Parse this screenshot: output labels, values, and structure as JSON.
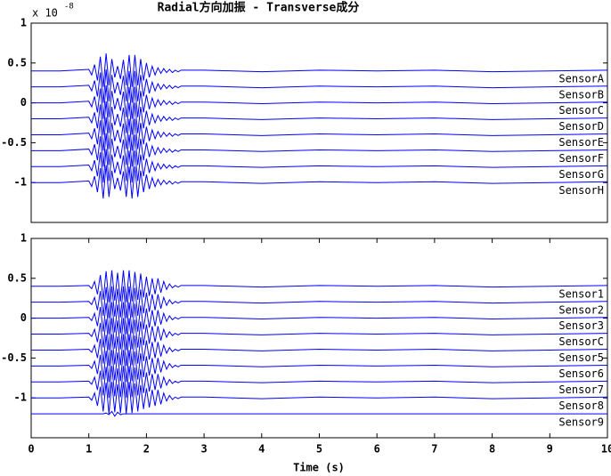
{
  "chart_data": [
    {
      "type": "line",
      "title": "Radial方向加振 - Transverse成分",
      "y_multiplier": "x 10",
      "y_exponent": "-8",
      "xlim": [
        0,
        10
      ],
      "ylim": [
        -1.5,
        1
      ],
      "yticks": [
        1,
        0.5,
        0,
        -0.5,
        -1
      ],
      "x": [
        0,
        0.5,
        1,
        1.05,
        1.1,
        1.15,
        1.2,
        1.25,
        1.3,
        1.35,
        1.4,
        1.45,
        1.5,
        1.55,
        1.6,
        1.65,
        1.7,
        1.75,
        1.8,
        1.85,
        1.9,
        1.95,
        2,
        2.05,
        2.1,
        2.15,
        2.2,
        2.25,
        2.3,
        2.35,
        2.4,
        2.45,
        2.5,
        2.55,
        2.6,
        3,
        4,
        5,
        6,
        7,
        8,
        9,
        10
      ],
      "series": [
        {
          "name": "SensorA",
          "color": "#0000ff",
          "values": [
            0.4,
            0.4,
            0.42,
            0.35,
            0.48,
            0.28,
            0.58,
            0.2,
            0.62,
            0.22,
            0.55,
            0.32,
            0.46,
            0.3,
            0.54,
            0.22,
            0.6,
            0.2,
            0.6,
            0.22,
            0.55,
            0.28,
            0.5,
            0.32,
            0.46,
            0.35,
            0.44,
            0.37,
            0.43,
            0.38,
            0.42,
            0.38,
            0.41,
            0.39,
            0.41,
            0.41,
            0.39,
            0.41,
            0.4,
            0.41,
            0.39,
            0.4,
            0.41
          ]
        },
        {
          "name": "SensorB",
          "color": "#0000ff",
          "values": [
            0.2,
            0.2,
            0.22,
            0.15,
            0.28,
            0.08,
            0.38,
            0,
            0.42,
            0.02,
            0.35,
            0.12,
            0.26,
            0.1,
            0.34,
            0.02,
            0.4,
            0,
            0.4,
            0.02,
            0.35,
            0.08,
            0.3,
            0.12,
            0.26,
            0.15,
            0.24,
            0.17,
            0.23,
            0.18,
            0.22,
            0.18,
            0.21,
            0.19,
            0.21,
            0.21,
            0.19,
            0.21,
            0.2,
            0.21,
            0.19,
            0.2,
            0.21
          ]
        },
        {
          "name": "SensorC",
          "color": "#0000ff",
          "values": [
            0,
            0,
            0.02,
            -0.05,
            0.08,
            -0.12,
            0.18,
            -0.2,
            0.22,
            -0.18,
            0.15,
            -0.08,
            0.06,
            -0.1,
            0.14,
            -0.18,
            0.2,
            -0.2,
            0.2,
            -0.18,
            0.15,
            -0.12,
            0.1,
            -0.08,
            0.06,
            -0.05,
            0.04,
            -0.03,
            0.03,
            -0.02,
            0.02,
            -0.02,
            0.01,
            -0.01,
            0.01,
            0.01,
            -0.01,
            0.01,
            0,
            0.01,
            -0.01,
            0,
            0.01
          ]
        },
        {
          "name": "SensorD",
          "color": "#0000ff",
          "values": [
            -0.2,
            -0.2,
            -0.18,
            -0.25,
            -0.12,
            -0.32,
            -0.02,
            -0.4,
            0.02,
            -0.38,
            -0.05,
            -0.28,
            -0.14,
            -0.3,
            -0.06,
            -0.38,
            0,
            -0.4,
            0,
            -0.38,
            -0.05,
            -0.32,
            -0.1,
            -0.28,
            -0.14,
            -0.25,
            -0.16,
            -0.23,
            -0.17,
            -0.22,
            -0.18,
            -0.22,
            -0.19,
            -0.21,
            -0.19,
            -0.19,
            -0.21,
            -0.19,
            -0.2,
            -0.19,
            -0.21,
            -0.2,
            -0.19
          ]
        },
        {
          "name": "SensorE",
          "color": "#0000ff",
          "values": [
            -0.4,
            -0.4,
            -0.38,
            -0.45,
            -0.32,
            -0.52,
            -0.22,
            -0.6,
            -0.18,
            -0.58,
            -0.25,
            -0.48,
            -0.34,
            -0.5,
            -0.26,
            -0.58,
            -0.2,
            -0.6,
            -0.2,
            -0.58,
            -0.25,
            -0.52,
            -0.3,
            -0.48,
            -0.34,
            -0.45,
            -0.36,
            -0.43,
            -0.37,
            -0.42,
            -0.38,
            -0.42,
            -0.39,
            -0.41,
            -0.39,
            -0.39,
            -0.41,
            -0.39,
            -0.4,
            -0.39,
            -0.41,
            -0.4,
            -0.39
          ]
        },
        {
          "name": "SensorF",
          "color": "#0000ff",
          "values": [
            -0.6,
            -0.6,
            -0.58,
            -0.65,
            -0.52,
            -0.72,
            -0.42,
            -0.8,
            -0.38,
            -0.78,
            -0.45,
            -0.68,
            -0.54,
            -0.7,
            -0.46,
            -0.78,
            -0.4,
            -0.8,
            -0.4,
            -0.78,
            -0.45,
            -0.72,
            -0.5,
            -0.68,
            -0.54,
            -0.65,
            -0.56,
            -0.63,
            -0.57,
            -0.62,
            -0.58,
            -0.62,
            -0.59,
            -0.61,
            -0.59,
            -0.59,
            -0.61,
            -0.59,
            -0.6,
            -0.59,
            -0.61,
            -0.6,
            -0.59
          ]
        },
        {
          "name": "SensorG",
          "color": "#0000ff",
          "values": [
            -0.8,
            -0.8,
            -0.78,
            -0.85,
            -0.72,
            -0.92,
            -0.62,
            -1,
            -0.58,
            -0.98,
            -0.65,
            -0.88,
            -0.74,
            -0.9,
            -0.66,
            -0.98,
            -0.6,
            -1,
            -0.6,
            -0.98,
            -0.65,
            -0.92,
            -0.7,
            -0.88,
            -0.74,
            -0.85,
            -0.76,
            -0.83,
            -0.77,
            -0.82,
            -0.78,
            -0.82,
            -0.79,
            -0.81,
            -0.79,
            -0.79,
            -0.81,
            -0.79,
            -0.8,
            -0.79,
            -0.81,
            -0.8,
            -0.79
          ]
        },
        {
          "name": "SensorH",
          "color": "#0000ff",
          "values": [
            -1,
            -1,
            -0.98,
            -1.05,
            -0.92,
            -1.12,
            -0.82,
            -1.2,
            -0.78,
            -1.18,
            -0.85,
            -1.08,
            -0.94,
            -1.1,
            -0.86,
            -1.18,
            -0.8,
            -1.2,
            -0.8,
            -1.18,
            -0.85,
            -1.12,
            -0.9,
            -1.08,
            -0.94,
            -1.05,
            -0.96,
            -1.03,
            -0.97,
            -1.02,
            -0.98,
            -1.02,
            -0.99,
            -1.01,
            -0.99,
            -0.99,
            -1.01,
            -0.99,
            -1,
            -0.99,
            -1.01,
            -1,
            -0.99
          ]
        }
      ]
    },
    {
      "type": "line",
      "xlabel": "Time (s)",
      "xlim": [
        0,
        10
      ],
      "xticks": [
        0,
        1,
        2,
        3,
        4,
        5,
        6,
        7,
        8,
        9,
        10
      ],
      "ylim": [
        -1.5,
        1
      ],
      "yticks": [
        1,
        0.5,
        0,
        -0.5,
        -1
      ],
      "x": [
        0,
        0.5,
        1,
        1.05,
        1.1,
        1.15,
        1.2,
        1.25,
        1.3,
        1.35,
        1.4,
        1.45,
        1.5,
        1.55,
        1.6,
        1.65,
        1.7,
        1.75,
        1.8,
        1.85,
        1.9,
        1.95,
        2,
        2.05,
        2.1,
        2.15,
        2.2,
        2.25,
        2.3,
        2.35,
        2.4,
        2.45,
        2.5,
        2.55,
        2.6,
        3,
        4,
        5,
        6,
        7,
        8,
        9,
        10
      ],
      "series": [
        {
          "name": "Sensor1",
          "color": "#0000ff",
          "values": [
            0.4,
            0.4,
            0.41,
            0.37,
            0.46,
            0.3,
            0.54,
            0.23,
            0.59,
            0.2,
            0.6,
            0.22,
            0.57,
            0.21,
            0.6,
            0.2,
            0.6,
            0.21,
            0.58,
            0.23,
            0.56,
            0.26,
            0.52,
            0.28,
            0.5,
            0.3,
            0.5,
            0.32,
            0.46,
            0.36,
            0.43,
            0.38,
            0.41,
            0.39,
            0.41,
            0.41,
            0.39,
            0.41,
            0.4,
            0.41,
            0.39,
            0.4,
            0.41
          ]
        },
        {
          "name": "Sensor2",
          "color": "#0000ff",
          "values": [
            0.2,
            0.2,
            0.21,
            0.17,
            0.26,
            0.1,
            0.34,
            0.03,
            0.39,
            0,
            0.4,
            0.02,
            0.37,
            0.01,
            0.4,
            0,
            0.4,
            0.01,
            0.38,
            0.03,
            0.36,
            0.06,
            0.32,
            0.08,
            0.3,
            0.1,
            0.3,
            0.12,
            0.26,
            0.16,
            0.23,
            0.18,
            0.21,
            0.19,
            0.21,
            0.21,
            0.19,
            0.21,
            0.2,
            0.21,
            0.19,
            0.2,
            0.21
          ]
        },
        {
          "name": "Sensor3",
          "color": "#0000ff",
          "values": [
            0,
            0,
            0.01,
            -0.03,
            0.06,
            -0.1,
            0.14,
            -0.17,
            0.19,
            -0.2,
            0.2,
            -0.18,
            0.17,
            -0.19,
            0.2,
            -0.2,
            0.2,
            -0.19,
            0.18,
            -0.17,
            0.16,
            -0.14,
            0.12,
            -0.12,
            0.1,
            -0.1,
            0.1,
            -0.08,
            0.06,
            -0.04,
            0.03,
            -0.02,
            0.01,
            -0.01,
            0.01,
            0.01,
            -0.01,
            0.01,
            0,
            0.01,
            -0.01,
            0,
            0.01
          ]
        },
        {
          "name": "SensorC",
          "color": "#0000ff",
          "values": [
            -0.2,
            -0.2,
            -0.19,
            -0.23,
            -0.14,
            -0.3,
            -0.06,
            -0.37,
            -0.01,
            -0.4,
            0,
            -0.38,
            -0.03,
            -0.39,
            0,
            -0.4,
            0,
            -0.39,
            -0.02,
            -0.37,
            -0.04,
            -0.34,
            -0.08,
            -0.32,
            -0.1,
            -0.3,
            -0.1,
            -0.28,
            -0.14,
            -0.24,
            -0.17,
            -0.22,
            -0.19,
            -0.21,
            -0.19,
            -0.19,
            -0.21,
            -0.19,
            -0.2,
            -0.19,
            -0.21,
            -0.2,
            -0.19
          ]
        },
        {
          "name": "Sensor5",
          "color": "#0000ff",
          "values": [
            -0.4,
            -0.4,
            -0.39,
            -0.43,
            -0.34,
            -0.5,
            -0.26,
            -0.57,
            -0.21,
            -0.6,
            -0.2,
            -0.58,
            -0.23,
            -0.59,
            -0.2,
            -0.6,
            -0.2,
            -0.59,
            -0.22,
            -0.57,
            -0.24,
            -0.54,
            -0.28,
            -0.52,
            -0.3,
            -0.5,
            -0.3,
            -0.48,
            -0.34,
            -0.44,
            -0.37,
            -0.42,
            -0.39,
            -0.41,
            -0.39,
            -0.39,
            -0.41,
            -0.39,
            -0.4,
            -0.39,
            -0.41,
            -0.4,
            -0.39
          ]
        },
        {
          "name": "Sensor6",
          "color": "#0000ff",
          "values": [
            -0.6,
            -0.6,
            -0.59,
            -0.63,
            -0.54,
            -0.7,
            -0.46,
            -0.77,
            -0.41,
            -0.8,
            -0.4,
            -0.78,
            -0.43,
            -0.79,
            -0.4,
            -0.8,
            -0.4,
            -0.79,
            -0.42,
            -0.77,
            -0.44,
            -0.74,
            -0.48,
            -0.72,
            -0.5,
            -0.7,
            -0.5,
            -0.68,
            -0.54,
            -0.64,
            -0.57,
            -0.62,
            -0.59,
            -0.61,
            -0.59,
            -0.59,
            -0.61,
            -0.59,
            -0.6,
            -0.59,
            -0.61,
            -0.6,
            -0.59
          ]
        },
        {
          "name": "Sensor7",
          "color": "#0000ff",
          "values": [
            -0.8,
            -0.8,
            -0.79,
            -0.83,
            -0.74,
            -0.9,
            -0.66,
            -0.97,
            -0.61,
            -1,
            -0.6,
            -0.98,
            -0.63,
            -0.99,
            -0.6,
            -1,
            -0.6,
            -0.99,
            -0.62,
            -0.97,
            -0.64,
            -0.94,
            -0.68,
            -0.92,
            -0.7,
            -0.9,
            -0.7,
            -0.88,
            -0.74,
            -0.84,
            -0.77,
            -0.82,
            -0.79,
            -0.81,
            -0.79,
            -0.79,
            -0.81,
            -0.79,
            -0.8,
            -0.79,
            -0.81,
            -0.8,
            -0.79
          ]
        },
        {
          "name": "Sensor8",
          "color": "#0000ff",
          "values": [
            -1,
            -1,
            -0.99,
            -1.03,
            -0.94,
            -1.1,
            -0.86,
            -1.17,
            -0.81,
            -1.2,
            -0.8,
            -1.18,
            -0.83,
            -1.19,
            -0.8,
            -1.2,
            -0.8,
            -1.19,
            -0.82,
            -1.17,
            -0.84,
            -1.14,
            -0.88,
            -1.12,
            -0.9,
            -1.1,
            -0.9,
            -1.08,
            -0.94,
            -1.04,
            -0.97,
            -1.02,
            -0.99,
            -1.01,
            -0.99,
            -0.99,
            -1.01,
            -0.99,
            -1,
            -0.99,
            -1.01,
            -1,
            -0.99
          ]
        },
        {
          "name": "Sensor9",
          "color": "#0000ff",
          "values": [
            -1.2,
            -1.2,
            -1.2,
            -1.2,
            -1.2,
            -1.2,
            -1.2,
            -1.2,
            -1.19,
            -1.21,
            -1.17,
            -1.23,
            -1.18,
            -1.21,
            -1.2,
            -1.2,
            -1.2,
            -1.2,
            -1.2,
            -1.2,
            -1.2,
            -1.2,
            -1.2,
            -1.2,
            -1.2,
            -1.2,
            -1.2,
            -1.2,
            -1.2,
            -1.2,
            -1.2,
            -1.2,
            -1.2,
            -1.2,
            -1.2,
            -1.2,
            -1.2,
            -1.2,
            -1.2,
            -1.2,
            -1.2,
            -1.2,
            -1.2
          ]
        }
      ]
    }
  ]
}
